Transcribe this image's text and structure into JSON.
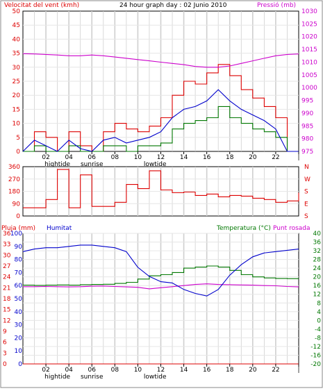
{
  "header": {
    "wind_label": "Velocitat del vent (kmh)",
    "graph_title": "24 hour graph day : 02 Junio 2010",
    "pressure_label": "Pressió (mb)"
  },
  "lower_header": {
    "rain_label": "Pluja (mm)",
    "humidity_label": "Humitat",
    "temp_label": "Temperatura (°C)",
    "dew_label": "Punt rosada"
  },
  "x_axis": {
    "ticks": [
      "02",
      "04",
      "06",
      "08",
      "10",
      "12",
      "14",
      "16",
      "18",
      "20",
      "22",
      "|"
    ],
    "markers": [
      {
        "label": "hightide",
        "hour": 3
      },
      {
        "label": "sunrise",
        "hour": 6
      },
      {
        "label": "lowtide",
        "hour": 11.5
      }
    ]
  },
  "colors": {
    "wind_gust": "#dd0000",
    "wind_avg": "#0000cc",
    "wind_min": "#007700",
    "pressure": "#cc00cc",
    "direction": "#dd0000",
    "humidity": "#0000cc",
    "temperature": "#007700",
    "dewpoint": "#cc00cc",
    "rain": "#dd0000",
    "header_text_wind": "#dd0000",
    "header_text_rain": "#dd0000",
    "header_text_humidity": "#0000cc",
    "header_text_temp": "#007700",
    "header_text_dew": "#cc00cc"
  },
  "chart_data": [
    {
      "type": "line",
      "title": "24 hour graph day : 02 Junio 2010",
      "xlabel": "",
      "ylabel": "Velocitat del vent (kmh)",
      "ylim": [
        0,
        50
      ],
      "y_ticks": [
        0,
        5,
        10,
        15,
        20,
        25,
        30,
        35,
        40,
        45,
        50
      ],
      "y2label": "Pressió (mb)",
      "y2lim": [
        975,
        1030
      ],
      "y2_ticks": [
        975,
        980,
        985,
        990,
        995,
        1000,
        1005,
        1010,
        1015,
        1020,
        1025,
        1030
      ],
      "x": [
        0,
        1,
        2,
        3,
        4,
        5,
        6,
        7,
        8,
        9,
        10,
        11,
        12,
        13,
        14,
        15,
        16,
        17,
        18,
        19,
        20,
        21,
        22,
        23,
        24
      ],
      "series": [
        {
          "values": [
            0,
            7,
            5,
            0,
            7,
            2,
            0,
            7,
            10,
            8,
            7,
            9,
            12,
            20,
            25,
            24,
            28,
            31,
            27,
            22,
            19,
            16,
            12,
            0,
            0
          ]
        },
        {
          "values": [
            0,
            4,
            2,
            0,
            4,
            1,
            0,
            4,
            5,
            3,
            4,
            5,
            7,
            12,
            15,
            16,
            18,
            22,
            18,
            15,
            13,
            11,
            8,
            0,
            0
          ]
        },
        {
          "values": [
            0,
            2,
            0,
            0,
            2,
            0,
            0,
            2,
            2,
            0,
            2,
            2,
            3,
            8,
            10,
            11,
            12,
            16,
            12,
            10,
            8,
            7,
            5,
            0,
            0
          ]
        },
        {
          "axis": "right",
          "values": [
            1013.3,
            1013.2,
            1013,
            1012.8,
            1012.5,
            1012.5,
            1012.8,
            1012.5,
            1012,
            1011.5,
            1011,
            1010.5,
            1010,
            1009.5,
            1009,
            1008.3,
            1008,
            1008,
            1008.5,
            1009.5,
            1010.5,
            1011.5,
            1012.5,
            1013,
            1013.2
          ]
        }
      ]
    },
    {
      "type": "line",
      "title": "",
      "ylabel": "",
      "ylim": [
        0,
        360
      ],
      "y_ticks": [
        0,
        90,
        180,
        270,
        360
      ],
      "y_labels_right": [
        "S",
        "E",
        "S",
        "W",
        "N"
      ],
      "x": [
        0,
        1,
        2,
        3,
        4,
        5,
        6,
        7,
        8,
        9,
        10,
        11,
        12,
        13,
        14,
        15,
        16,
        17,
        18,
        19,
        20,
        21,
        22,
        23,
        24
      ],
      "series": [
        {
          "values": [
            60,
            60,
            120,
            340,
            60,
            300,
            70,
            70,
            100,
            230,
            200,
            330,
            190,
            170,
            175,
            150,
            160,
            140,
            150,
            145,
            130,
            120,
            100,
            110,
            170
          ]
        }
      ]
    },
    {
      "type": "line",
      "title": "",
      "ylabel": "Pluja (mm)",
      "ylim": [
        0,
        36
      ],
      "y_ticks": [
        0,
        3,
        6,
        9,
        12,
        15,
        18,
        21,
        24,
        27,
        30,
        33,
        36
      ],
      "y_mid_label": "Humitat",
      "y_mid_lim": [
        0,
        100
      ],
      "y_mid_ticks": [
        0,
        10,
        20,
        30,
        40,
        50,
        60,
        70,
        80,
        90,
        100
      ],
      "y2label": "Temperatura (°C)",
      "y2lim": [
        -20,
        40
      ],
      "y2_ticks": [
        -20,
        -16,
        -12,
        -8,
        -4,
        0,
        4,
        8,
        12,
        16,
        20,
        24,
        28,
        32,
        36,
        40
      ],
      "x": [
        0,
        1,
        2,
        3,
        4,
        5,
        6,
        7,
        8,
        9,
        10,
        11,
        12,
        13,
        14,
        15,
        16,
        17,
        18,
        19,
        20,
        21,
        22,
        23,
        24
      ],
      "series": [
        {
          "values": [
            0,
            0,
            0,
            0,
            0,
            0,
            0,
            0,
            0,
            0,
            0,
            0,
            0,
            0,
            0,
            0,
            0,
            0,
            0,
            0,
            0,
            0,
            0,
            0,
            0
          ]
        },
        {
          "values": [
            86,
            88,
            89,
            89,
            90,
            91,
            91,
            90,
            89,
            86,
            74,
            67,
            63,
            62,
            57,
            54,
            52,
            57,
            68,
            76,
            82,
            85,
            86,
            87,
            88
          ]
        },
        {
          "axis": "right",
          "values": [
            16.2,
            16.1,
            16.2,
            16.3,
            16.2,
            16.4,
            16.5,
            16.6,
            17,
            17.5,
            19,
            20.5,
            21,
            22,
            24,
            24.5,
            25,
            24.5,
            23,
            21,
            20,
            19.5,
            19.3,
            19.2,
            19.1
          ]
        },
        {
          "axis": "right",
          "values": [
            15.5,
            15.5,
            15.6,
            15.5,
            15.4,
            15.5,
            15.7,
            15.8,
            15.6,
            15.4,
            15.2,
            14.5,
            15,
            15.5,
            16,
            16.5,
            16.8,
            16.5,
            16.4,
            16.3,
            16.2,
            16,
            15.9,
            15.6,
            15.4
          ]
        }
      ]
    }
  ]
}
